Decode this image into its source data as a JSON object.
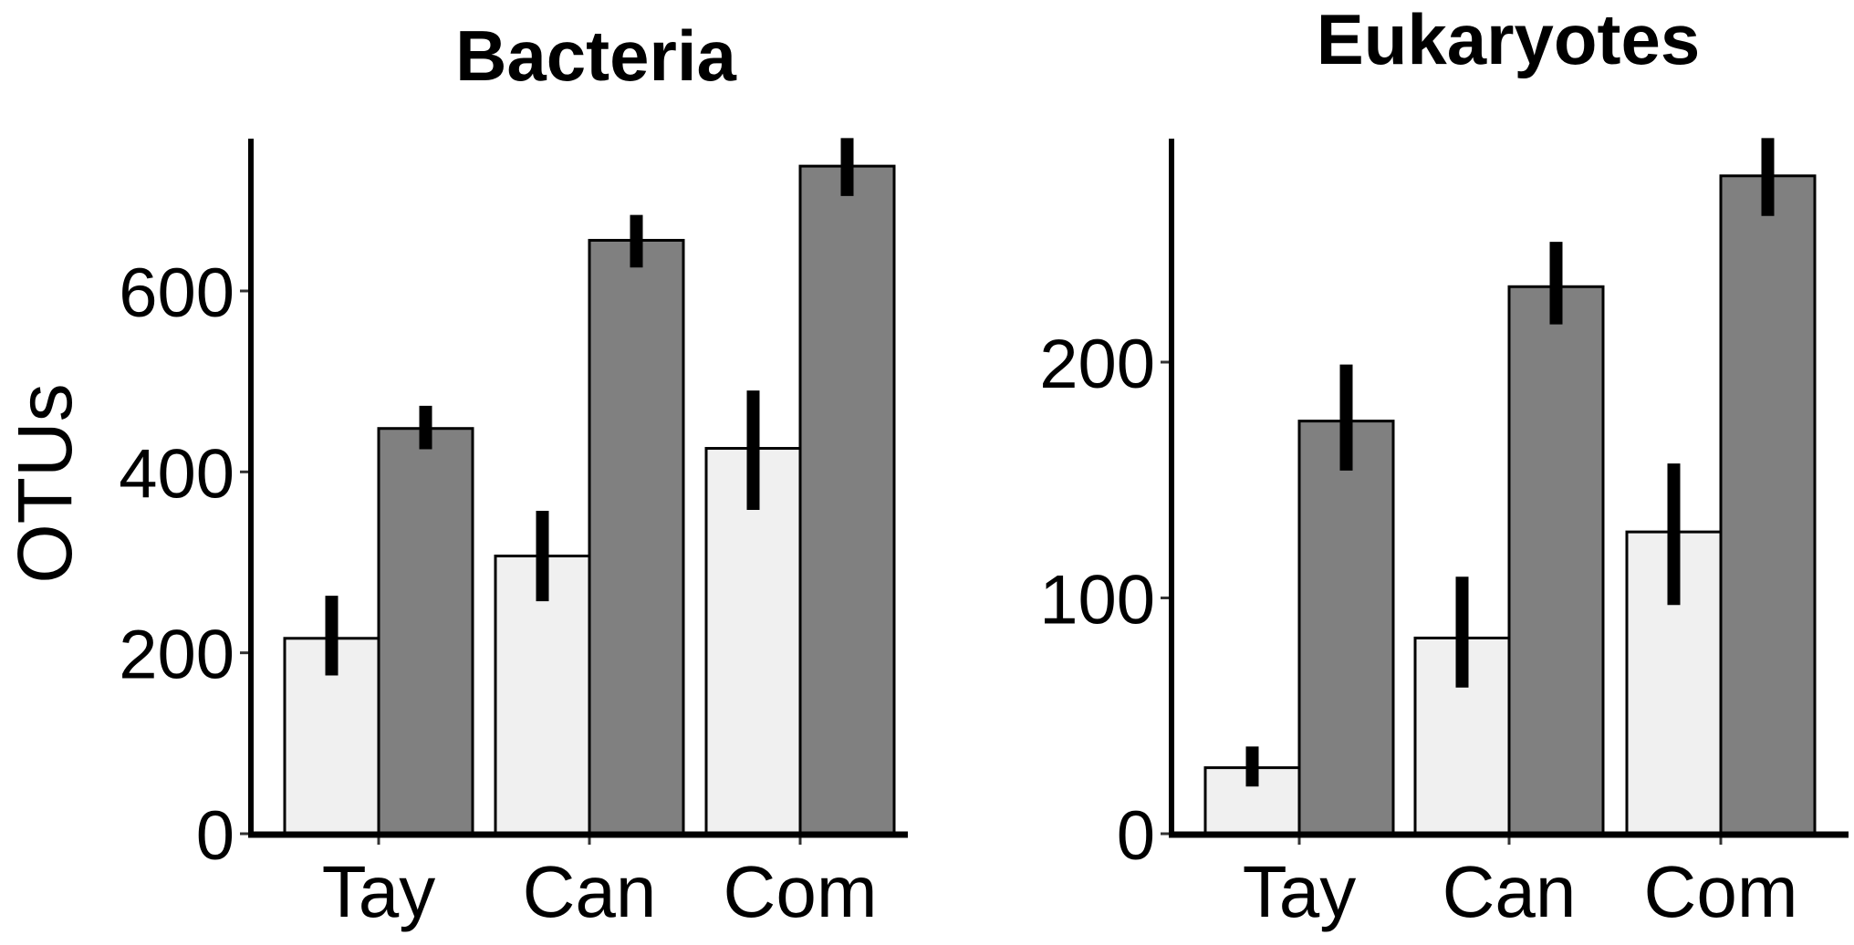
{
  "ylabel": "OTUs",
  "colors": {
    "light": "#F0F0F0",
    "dark": "#808080",
    "outline": "#000000",
    "errorbar": "#000000"
  },
  "chart_data": [
    {
      "type": "bar",
      "title": "Bacteria",
      "xlabel": "",
      "ylabel": "OTUs",
      "categories": [
        "Tay",
        "Can",
        "Com"
      ],
      "yticks": [
        0,
        200,
        400,
        600
      ],
      "ylim": [
        0,
        768
      ],
      "grid": false,
      "legend": "none",
      "series": [
        {
          "name": "light",
          "color": "#F0F0F0",
          "values": [
            216,
            307,
            426
          ],
          "err_low": [
            175,
            257,
            358
          ],
          "err_high": [
            263,
            357,
            490
          ]
        },
        {
          "name": "dark",
          "color": "#808080",
          "values": [
            448,
            656,
            738
          ],
          "err_low": [
            425,
            626,
            705
          ],
          "err_high": [
            473,
            684,
            769
          ]
        }
      ]
    },
    {
      "type": "bar",
      "title": "Eukaryotes",
      "xlabel": "",
      "ylabel": "",
      "categories": [
        "Tay",
        "Can",
        "Com"
      ],
      "yticks": [
        0,
        100,
        200
      ],
      "ylim": [
        0,
        295
      ],
      "grid": false,
      "legend": "none",
      "series": [
        {
          "name": "light",
          "color": "#F0F0F0",
          "values": [
            28,
            83,
            128
          ],
          "err_low": [
            20,
            62,
            97
          ],
          "err_high": [
            37,
            109,
            157
          ]
        },
        {
          "name": "dark",
          "color": "#808080",
          "values": [
            175,
            232,
            279
          ],
          "err_low": [
            154,
            216,
            262
          ],
          "err_high": [
            199,
            251,
            295
          ]
        }
      ]
    }
  ]
}
